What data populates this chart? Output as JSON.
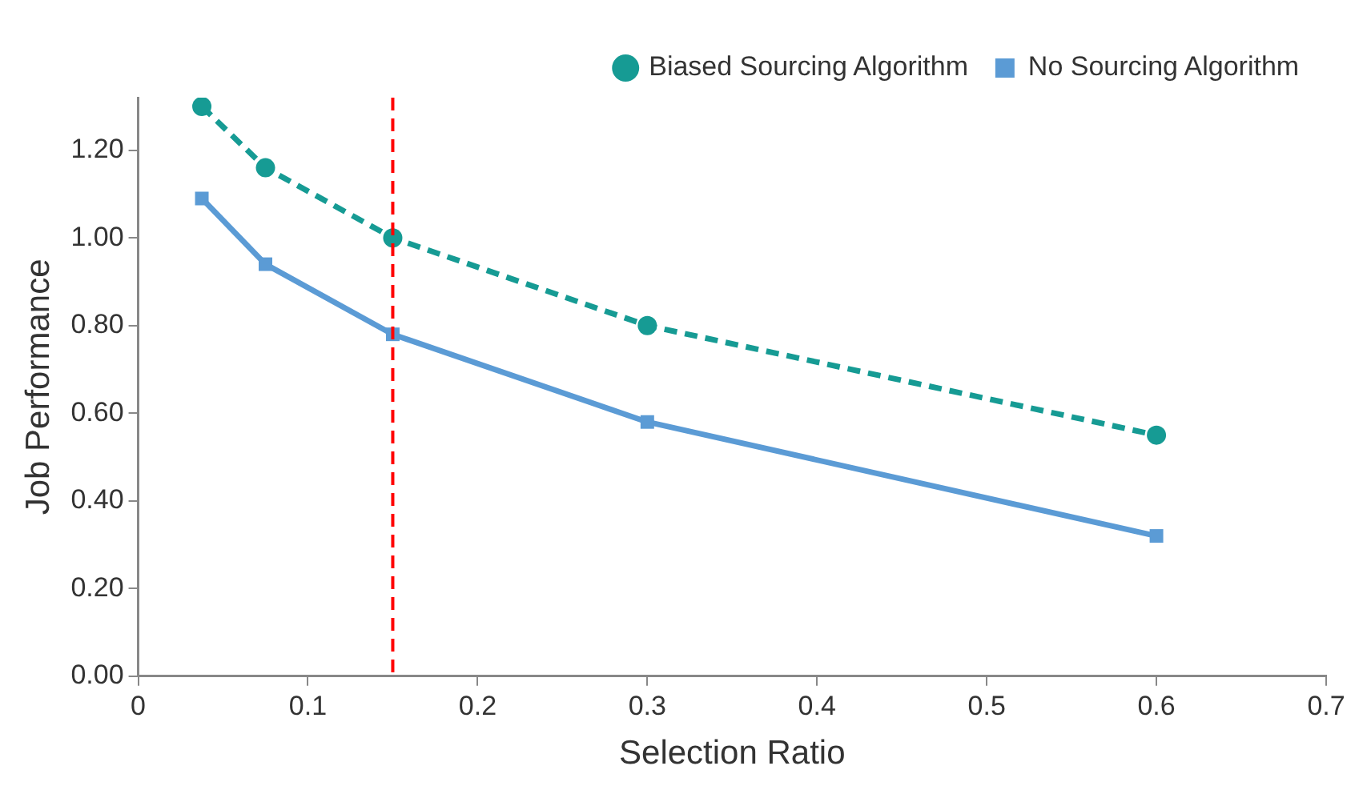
{
  "chart_data": {
    "type": "line",
    "xlabel": "Selection Ratio",
    "ylabel": "Job Performance",
    "x": [
      0.0375,
      0.075,
      0.15,
      0.3,
      0.6
    ],
    "series": [
      {
        "name": "Biased Sourcing Algorithm",
        "color": "#169b94",
        "values": [
          1.3,
          1.16,
          1.0,
          0.8,
          0.55
        ],
        "marker": "circle",
        "line_style": "dashed"
      },
      {
        "name": "No Sourcing Algorithm",
        "color": "#5b9bd5",
        "values": [
          1.09,
          0.94,
          0.78,
          0.58,
          0.32
        ],
        "marker": "square",
        "line_style": "solid"
      }
    ],
    "xlim": [
      0,
      0.7
    ],
    "xticks": [
      0,
      0.1,
      0.2,
      0.3,
      0.4,
      0.5,
      0.6,
      0.7
    ],
    "ylim": [
      0,
      1.32
    ],
    "yticks": [
      {
        "value": 0,
        "label": "0.00"
      },
      {
        "value": 0.2,
        "label": "0.20"
      },
      {
        "value": 0.4,
        "label": "0.40"
      },
      {
        "value": 0.6,
        "label": "0.60"
      },
      {
        "value": 0.8,
        "label": "0.80"
      },
      {
        "value": 1,
        "label": "1.00"
      },
      {
        "value": 1.2,
        "label": "1.20"
      }
    ],
    "ref_lines": [
      {
        "axis": "x",
        "value": 0.15,
        "color": "#ff0000",
        "line_style": "dashed"
      }
    ],
    "grid": false,
    "legend": "top right"
  }
}
